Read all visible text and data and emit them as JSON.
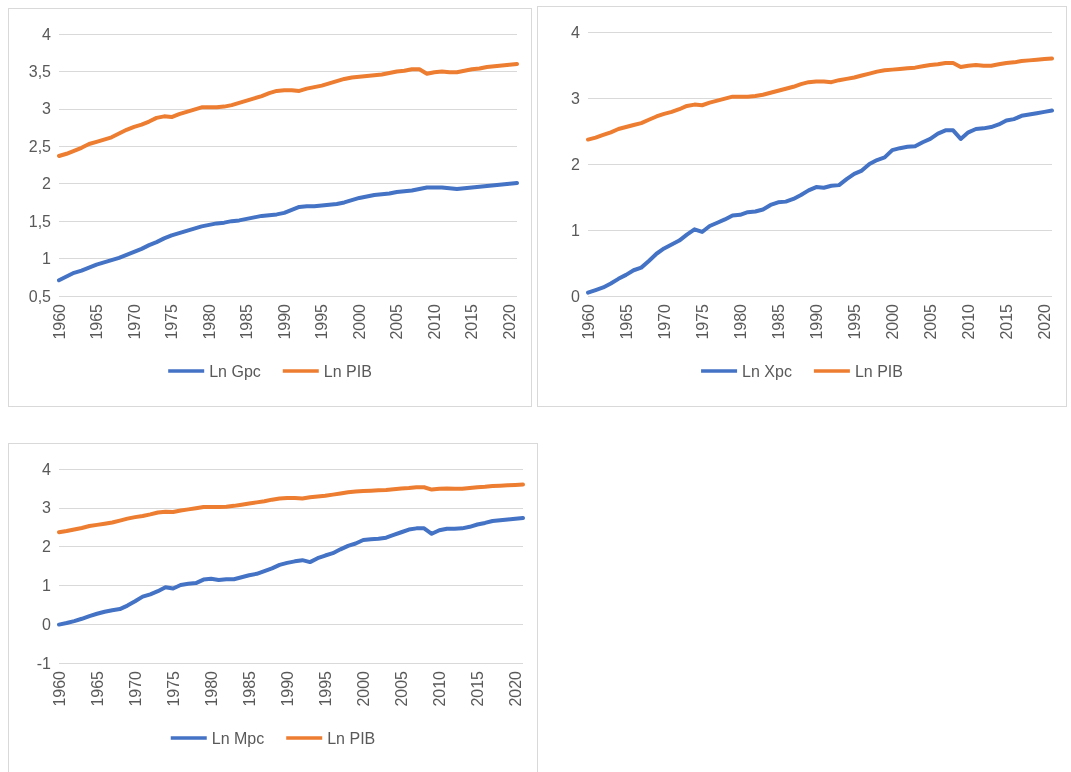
{
  "chart_data": [
    {
      "type": "line",
      "x": [
        1960,
        1961,
        1962,
        1963,
        1964,
        1965,
        1966,
        1967,
        1968,
        1969,
        1970,
        1971,
        1972,
        1973,
        1974,
        1975,
        1976,
        1977,
        1978,
        1979,
        1980,
        1981,
        1982,
        1983,
        1984,
        1985,
        1986,
        1987,
        1988,
        1989,
        1990,
        1991,
        1992,
        1993,
        1994,
        1995,
        1996,
        1997,
        1998,
        1999,
        2000,
        2001,
        2002,
        2003,
        2004,
        2005,
        2006,
        2007,
        2008,
        2009,
        2010,
        2011,
        2012,
        2013,
        2014,
        2015,
        2016,
        2017,
        2018,
        2019,
        2020,
        2021
      ],
      "series": [
        {
          "name": "Ln Gpc",
          "color": "#4472c4",
          "values": [
            0.71,
            0.76,
            0.81,
            0.84,
            0.88,
            0.92,
            0.95,
            0.98,
            1.01,
            1.05,
            1.09,
            1.13,
            1.18,
            1.22,
            1.27,
            1.31,
            1.34,
            1.37,
            1.4,
            1.43,
            1.45,
            1.47,
            1.48,
            1.5,
            1.51,
            1.53,
            1.55,
            1.57,
            1.58,
            1.59,
            1.61,
            1.65,
            1.69,
            1.7,
            1.7,
            1.71,
            1.72,
            1.73,
            1.75,
            1.78,
            1.81,
            1.83,
            1.85,
            1.86,
            1.87,
            1.89,
            1.9,
            1.91,
            1.93,
            1.95,
            1.95,
            1.95,
            1.94,
            1.93,
            1.94,
            1.95,
            1.96,
            1.97,
            1.98,
            1.99,
            2.0,
            2.01
          ]
        },
        {
          "name": "Ln PIB",
          "color": "#ed7d31",
          "values": [
            2.37,
            2.4,
            2.44,
            2.48,
            2.53,
            2.56,
            2.59,
            2.62,
            2.67,
            2.72,
            2.76,
            2.79,
            2.83,
            2.88,
            2.9,
            2.89,
            2.93,
            2.96,
            2.99,
            3.02,
            3.02,
            3.02,
            3.03,
            3.05,
            3.08,
            3.11,
            3.14,
            3.17,
            3.21,
            3.24,
            3.25,
            3.25,
            3.24,
            3.27,
            3.29,
            3.31,
            3.34,
            3.37,
            3.4,
            3.42,
            3.43,
            3.44,
            3.45,
            3.46,
            3.48,
            3.5,
            3.51,
            3.53,
            3.53,
            3.47,
            3.49,
            3.5,
            3.49,
            3.49,
            3.51,
            3.53,
            3.54,
            3.56,
            3.57,
            3.58,
            3.59,
            3.6
          ]
        }
      ],
      "xlim": [
        1960,
        2021
      ],
      "xticks": [
        1960,
        1965,
        1970,
        1975,
        1980,
        1985,
        1990,
        1995,
        2000,
        2005,
        2010,
        2015,
        2020
      ],
      "ylim": [
        0.5,
        4
      ],
      "yticks": [
        {
          "value": 0.5,
          "label": "0,5"
        },
        1,
        {
          "value": 1.5,
          "label": "1,5"
        },
        2,
        {
          "value": 2.5,
          "label": "2,5"
        },
        3,
        {
          "value": 3.5,
          "label": "3,5"
        },
        4
      ],
      "grid": "y",
      "legend": "bottom",
      "marker": "none",
      "line_style": "solid"
    },
    {
      "type": "line",
      "x": [
        1960,
        1961,
        1962,
        1963,
        1964,
        1965,
        1966,
        1967,
        1968,
        1969,
        1970,
        1971,
        1972,
        1973,
        1974,
        1975,
        1976,
        1977,
        1978,
        1979,
        1980,
        1981,
        1982,
        1983,
        1984,
        1985,
        1986,
        1987,
        1988,
        1989,
        1990,
        1991,
        1992,
        1993,
        1994,
        1995,
        1996,
        1997,
        1998,
        1999,
        2000,
        2001,
        2002,
        2003,
        2004,
        2005,
        2006,
        2007,
        2008,
        2009,
        2010,
        2011,
        2012,
        2013,
        2014,
        2015,
        2016,
        2017,
        2018,
        2019,
        2020,
        2021
      ],
      "series": [
        {
          "name": "Ln Xpc",
          "color": "#4472c4",
          "values": [
            0.05,
            0.09,
            0.13,
            0.19,
            0.26,
            0.32,
            0.39,
            0.43,
            0.53,
            0.64,
            0.72,
            0.78,
            0.84,
            0.93,
            1.01,
            0.97,
            1.06,
            1.11,
            1.16,
            1.22,
            1.23,
            1.27,
            1.28,
            1.31,
            1.38,
            1.42,
            1.43,
            1.47,
            1.53,
            1.6,
            1.65,
            1.64,
            1.67,
            1.68,
            1.77,
            1.85,
            1.9,
            2.0,
            2.06,
            2.1,
            2.21,
            2.24,
            2.26,
            2.27,
            2.33,
            2.38,
            2.46,
            2.51,
            2.51,
            2.38,
            2.48,
            2.53,
            2.54,
            2.56,
            2.6,
            2.66,
            2.68,
            2.73,
            2.75,
            2.77,
            2.79,
            2.81
          ]
        },
        {
          "name": "Ln PIB",
          "color": "#ed7d31",
          "values": [
            2.37,
            2.4,
            2.44,
            2.48,
            2.53,
            2.56,
            2.59,
            2.62,
            2.67,
            2.72,
            2.76,
            2.79,
            2.83,
            2.88,
            2.9,
            2.89,
            2.93,
            2.96,
            2.99,
            3.02,
            3.02,
            3.02,
            3.03,
            3.05,
            3.08,
            3.11,
            3.14,
            3.17,
            3.21,
            3.24,
            3.25,
            3.25,
            3.24,
            3.27,
            3.29,
            3.31,
            3.34,
            3.37,
            3.4,
            3.42,
            3.43,
            3.44,
            3.45,
            3.46,
            3.48,
            3.5,
            3.51,
            3.53,
            3.53,
            3.47,
            3.49,
            3.5,
            3.49,
            3.49,
            3.51,
            3.53,
            3.54,
            3.56,
            3.57,
            3.58,
            3.59,
            3.6
          ]
        }
      ],
      "xlim": [
        1960,
        2021
      ],
      "xticks": [
        1960,
        1965,
        1970,
        1975,
        1980,
        1985,
        1990,
        1995,
        2000,
        2005,
        2010,
        2015,
        2020
      ],
      "ylim": [
        0,
        4
      ],
      "yticks": [
        0,
        1,
        2,
        3,
        4
      ],
      "grid": "y",
      "legend": "bottom",
      "marker": "none",
      "line_style": "solid"
    },
    {
      "type": "line",
      "x": [
        1960,
        1961,
        1962,
        1963,
        1964,
        1965,
        1966,
        1967,
        1968,
        1969,
        1970,
        1971,
        1972,
        1973,
        1974,
        1975,
        1976,
        1977,
        1978,
        1979,
        1980,
        1981,
        1982,
        1983,
        1984,
        1985,
        1986,
        1987,
        1988,
        1989,
        1990,
        1991,
        1992,
        1993,
        1994,
        1995,
        1996,
        1997,
        1998,
        1999,
        2000,
        2001,
        2002,
        2003,
        2004,
        2005,
        2006,
        2007,
        2008,
        2009,
        2010,
        2011,
        2012,
        2013,
        2014,
        2015,
        2016,
        2017,
        2018,
        2019,
        2020,
        2021
      ],
      "series": [
        {
          "name": "Ln Mpc",
          "color": "#4472c4",
          "values": [
            -0.01,
            0.03,
            0.08,
            0.14,
            0.21,
            0.27,
            0.32,
            0.36,
            0.39,
            0.48,
            0.59,
            0.71,
            0.77,
            0.85,
            0.95,
            0.92,
            1.01,
            1.04,
            1.06,
            1.15,
            1.17,
            1.14,
            1.16,
            1.16,
            1.21,
            1.26,
            1.3,
            1.37,
            1.44,
            1.53,
            1.58,
            1.62,
            1.65,
            1.6,
            1.7,
            1.77,
            1.83,
            1.93,
            2.02,
            2.08,
            2.17,
            2.19,
            2.2,
            2.23,
            2.3,
            2.37,
            2.44,
            2.47,
            2.47,
            2.33,
            2.42,
            2.46,
            2.46,
            2.47,
            2.51,
            2.57,
            2.61,
            2.66,
            2.68,
            2.7,
            2.72,
            2.74
          ]
        },
        {
          "name": "Ln PIB",
          "color": "#ed7d31",
          "values": [
            2.37,
            2.4,
            2.44,
            2.48,
            2.53,
            2.56,
            2.59,
            2.62,
            2.67,
            2.72,
            2.76,
            2.79,
            2.83,
            2.88,
            2.9,
            2.89,
            2.93,
            2.96,
            2.99,
            3.02,
            3.02,
            3.02,
            3.03,
            3.05,
            3.08,
            3.11,
            3.14,
            3.17,
            3.21,
            3.24,
            3.25,
            3.25,
            3.24,
            3.27,
            3.29,
            3.31,
            3.34,
            3.37,
            3.4,
            3.42,
            3.43,
            3.44,
            3.45,
            3.46,
            3.48,
            3.5,
            3.51,
            3.53,
            3.53,
            3.47,
            3.49,
            3.5,
            3.49,
            3.49,
            3.51,
            3.53,
            3.54,
            3.56,
            3.57,
            3.58,
            3.59,
            3.6
          ]
        }
      ],
      "xlim": [
        1960,
        2021
      ],
      "xticks": [
        1960,
        1965,
        1970,
        1975,
        1980,
        1985,
        1990,
        1995,
        2000,
        2005,
        2010,
        2015,
        2020
      ],
      "ylim": [
        -1,
        4
      ],
      "yticks": [
        -1,
        0,
        1,
        2,
        3,
        4
      ],
      "grid": "y",
      "legend": "bottom",
      "marker": "none",
      "line_style": "solid"
    }
  ]
}
